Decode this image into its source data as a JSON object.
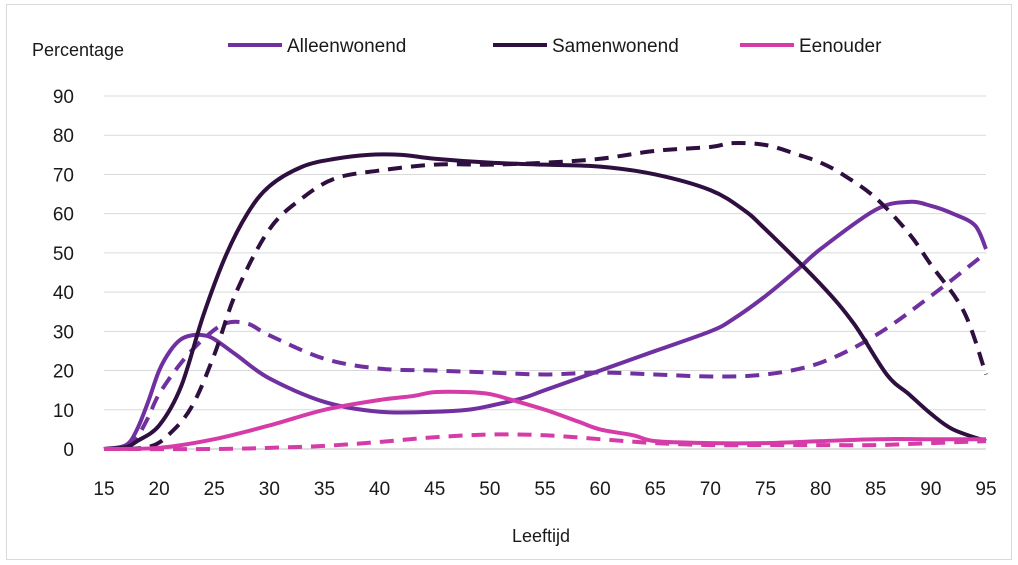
{
  "chart_data": {
    "type": "line",
    "ylabel": "Percentage",
    "xlabel": "Leeftijd",
    "xlim": [
      15,
      95
    ],
    "ylim": [
      0,
      90
    ],
    "x_ticks": [
      15,
      20,
      25,
      30,
      35,
      40,
      45,
      50,
      55,
      60,
      65,
      70,
      75,
      80,
      85,
      90,
      95
    ],
    "y_ticks": [
      0,
      10,
      20,
      30,
      40,
      50,
      60,
      70,
      80,
      90
    ],
    "grid": "horizontal",
    "legend_position": "top",
    "legend": [
      {
        "label": "Alleenwonend",
        "color": "#7030a0"
      },
      {
        "label": "Samenwonend",
        "color": "#2e0f3f"
      },
      {
        "label": "Eenouder",
        "color": "#d63ca8"
      }
    ],
    "series": [
      {
        "name": "Alleenwonend",
        "color": "#7030a0",
        "style": "solid",
        "x": [
          15,
          17,
          18,
          19,
          20,
          21,
          22,
          23,
          24,
          25,
          27,
          30,
          35,
          40,
          45,
          48,
          50,
          53,
          55,
          60,
          65,
          70,
          72,
          75,
          78,
          80,
          85,
          88,
          90,
          92,
          94,
          95
        ],
        "y": [
          0,
          1,
          5,
          12,
          20,
          25,
          28,
          29,
          29,
          28,
          24,
          18,
          12,
          9.5,
          9.5,
          10,
          11,
          13,
          15,
          20,
          25,
          30,
          33,
          39,
          46,
          51,
          61,
          63,
          62,
          60,
          57,
          51
        ]
      },
      {
        "name": "Alleenwonend",
        "color": "#7030a0",
        "style": "dashed",
        "x": [
          15,
          17,
          18,
          19,
          20,
          22,
          24,
          26,
          28,
          30,
          35,
          40,
          45,
          50,
          55,
          60,
          65,
          70,
          75,
          80,
          85,
          90,
          95
        ],
        "y": [
          0,
          0.5,
          3,
          8,
          14,
          22,
          28,
          32,
          32,
          29,
          23,
          20.5,
          20,
          19.5,
          19,
          19.5,
          19,
          18.5,
          19,
          22,
          29,
          39,
          50
        ]
      },
      {
        "name": "Samenwonend",
        "color": "#2e0f3f",
        "style": "solid",
        "x": [
          15,
          17,
          18,
          20,
          22,
          24,
          26,
          28,
          30,
          33,
          36,
          39,
          42,
          45,
          50,
          55,
          60,
          65,
          70,
          73,
          75,
          80,
          83,
          86,
          88,
          90,
          92,
          95
        ],
        "y": [
          0,
          0.5,
          2,
          6,
          16,
          34,
          49,
          60,
          67,
          72,
          74,
          75,
          75,
          74,
          73,
          72.5,
          72,
          70,
          66,
          61,
          56,
          42,
          32,
          19,
          14,
          9,
          5,
          2
        ]
      },
      {
        "name": "Samenwonend",
        "color": "#2e0f3f",
        "style": "dashed",
        "x": [
          15,
          19,
          21,
          23,
          25,
          27,
          30,
          33,
          36,
          40,
          45,
          50,
          55,
          60,
          65,
          70,
          72,
          75,
          78,
          80,
          82,
          85,
          88,
          90,
          93,
          95
        ],
        "y": [
          0,
          0.5,
          4,
          11,
          24,
          40,
          56,
          64,
          69,
          71,
          72.5,
          72.5,
          73,
          74,
          76,
          77,
          78,
          77.5,
          75,
          73,
          70,
          64,
          55,
          47,
          35,
          19
        ]
      },
      {
        "name": "Eenouder",
        "color": "#d63ca8",
        "style": "solid",
        "x": [
          15,
          20,
          25,
          30,
          35,
          40,
          43,
          45,
          48,
          50,
          52,
          55,
          58,
          60,
          63,
          65,
          70,
          75,
          80,
          85,
          90,
          95
        ],
        "y": [
          0,
          0.3,
          2.5,
          6,
          10,
          12.5,
          13.5,
          14.5,
          14.5,
          14,
          12.5,
          10,
          7,
          5,
          3.5,
          2,
          1.5,
          1.5,
          2,
          2.5,
          2.5,
          2.5
        ]
      },
      {
        "name": "Eenouder",
        "color": "#d63ca8",
        "style": "dashed",
        "x": [
          15,
          25,
          30,
          35,
          40,
          45,
          50,
          55,
          60,
          65,
          70,
          75,
          80,
          85,
          90,
          95
        ],
        "y": [
          0,
          0,
          0.3,
          0.8,
          1.8,
          3,
          3.7,
          3.5,
          2.5,
          1.5,
          1,
          1,
          1,
          1,
          1.5,
          2
        ]
      }
    ]
  }
}
